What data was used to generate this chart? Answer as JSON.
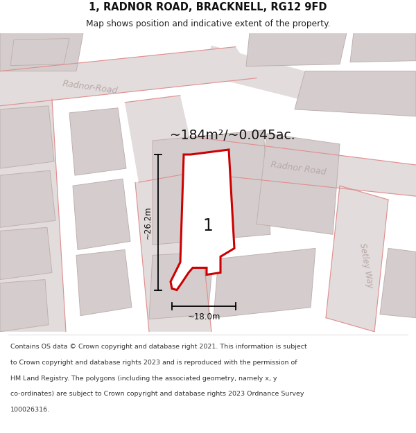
{
  "title": "1, RADNOR ROAD, BRACKNELL, RG12 9FD",
  "subtitle": "Map shows position and indicative extent of the property.",
  "area_label": "~184m²/~0.045ac.",
  "plot_number": "1",
  "dim_height": "~26.2m",
  "dim_width": "~18.0m",
  "footnote_lines": [
    "Contains OS data © Crown copyright and database right 2021. This information is subject",
    "to Crown copyright and database rights 2023 and is reproduced with the permission of",
    "HM Land Registry. The polygons (including the associated geometry, namely x, y",
    "co-ordinates) are subject to Crown copyright and database rights 2023 Ordnance Survey",
    "100026316."
  ],
  "map_bg": "#f0eded",
  "road_fill": "#e3dcdc",
  "road_edge": "#d4b8b8",
  "block_fill": "#d5cdcd",
  "block_edge": "#c0b0b0",
  "red_line": "#cc0000",
  "plot_fill": "#f5f0f0",
  "title_color": "#111111",
  "subtitle_color": "#222222",
  "footnote_color": "#333333",
  "dim_color": "#111111",
  "road_label_color": "#b8a8a8",
  "area_label_color": "#111111"
}
